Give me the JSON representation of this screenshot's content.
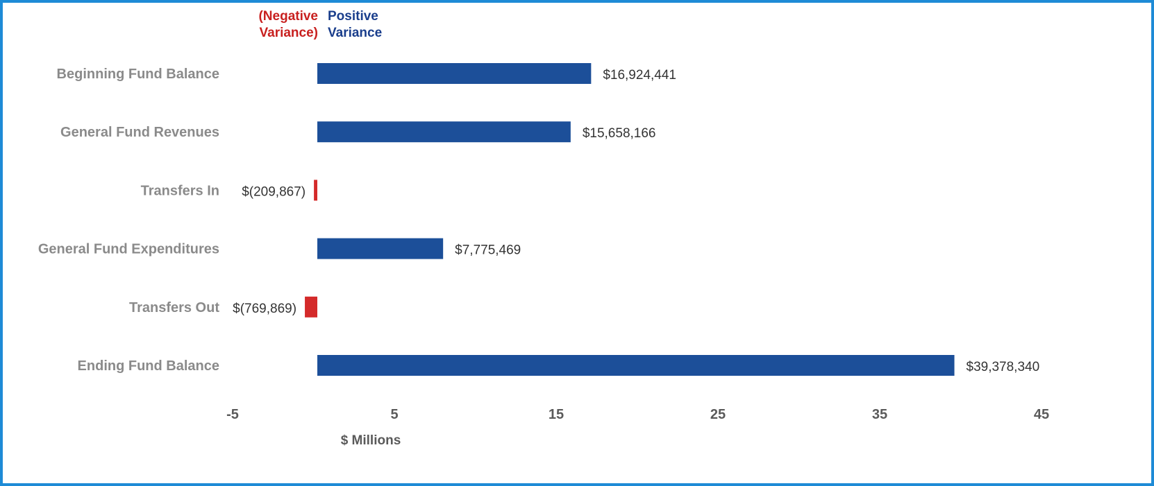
{
  "chart_data": {
    "type": "bar",
    "orientation": "horizontal",
    "categories": [
      "Beginning Fund Balance",
      "General Fund Revenues",
      "Transfers In",
      "General Fund Expenditures",
      "Transfers Out",
      "Ending Fund Balance"
    ],
    "values": [
      16924441,
      15658166,
      -209867,
      7775469,
      -769869,
      39378340
    ],
    "data_labels": [
      "$16,924,441",
      "$15,658,166",
      "$(209,867)",
      "$7,775,469",
      "$(769,869)",
      "$39,378,340"
    ],
    "legend": {
      "negative_line1": "(Negative",
      "negative_line2": "Variance)",
      "positive_line1": "Positive",
      "positive_line2": "Variance",
      "placement": "top"
    },
    "xlabel": "$ Millions",
    "ylabel": "",
    "x_ticks": [
      "-5",
      "5",
      "15",
      "25",
      "35",
      "45"
    ],
    "x_tick_values": [
      -5,
      5,
      15,
      25,
      35,
      45
    ],
    "xlim": [
      -5,
      45
    ],
    "grid": false,
    "colors": {
      "positive": "#1c4f99",
      "negative": "#d42a2a",
      "frame": "#1e8bd6"
    }
  }
}
